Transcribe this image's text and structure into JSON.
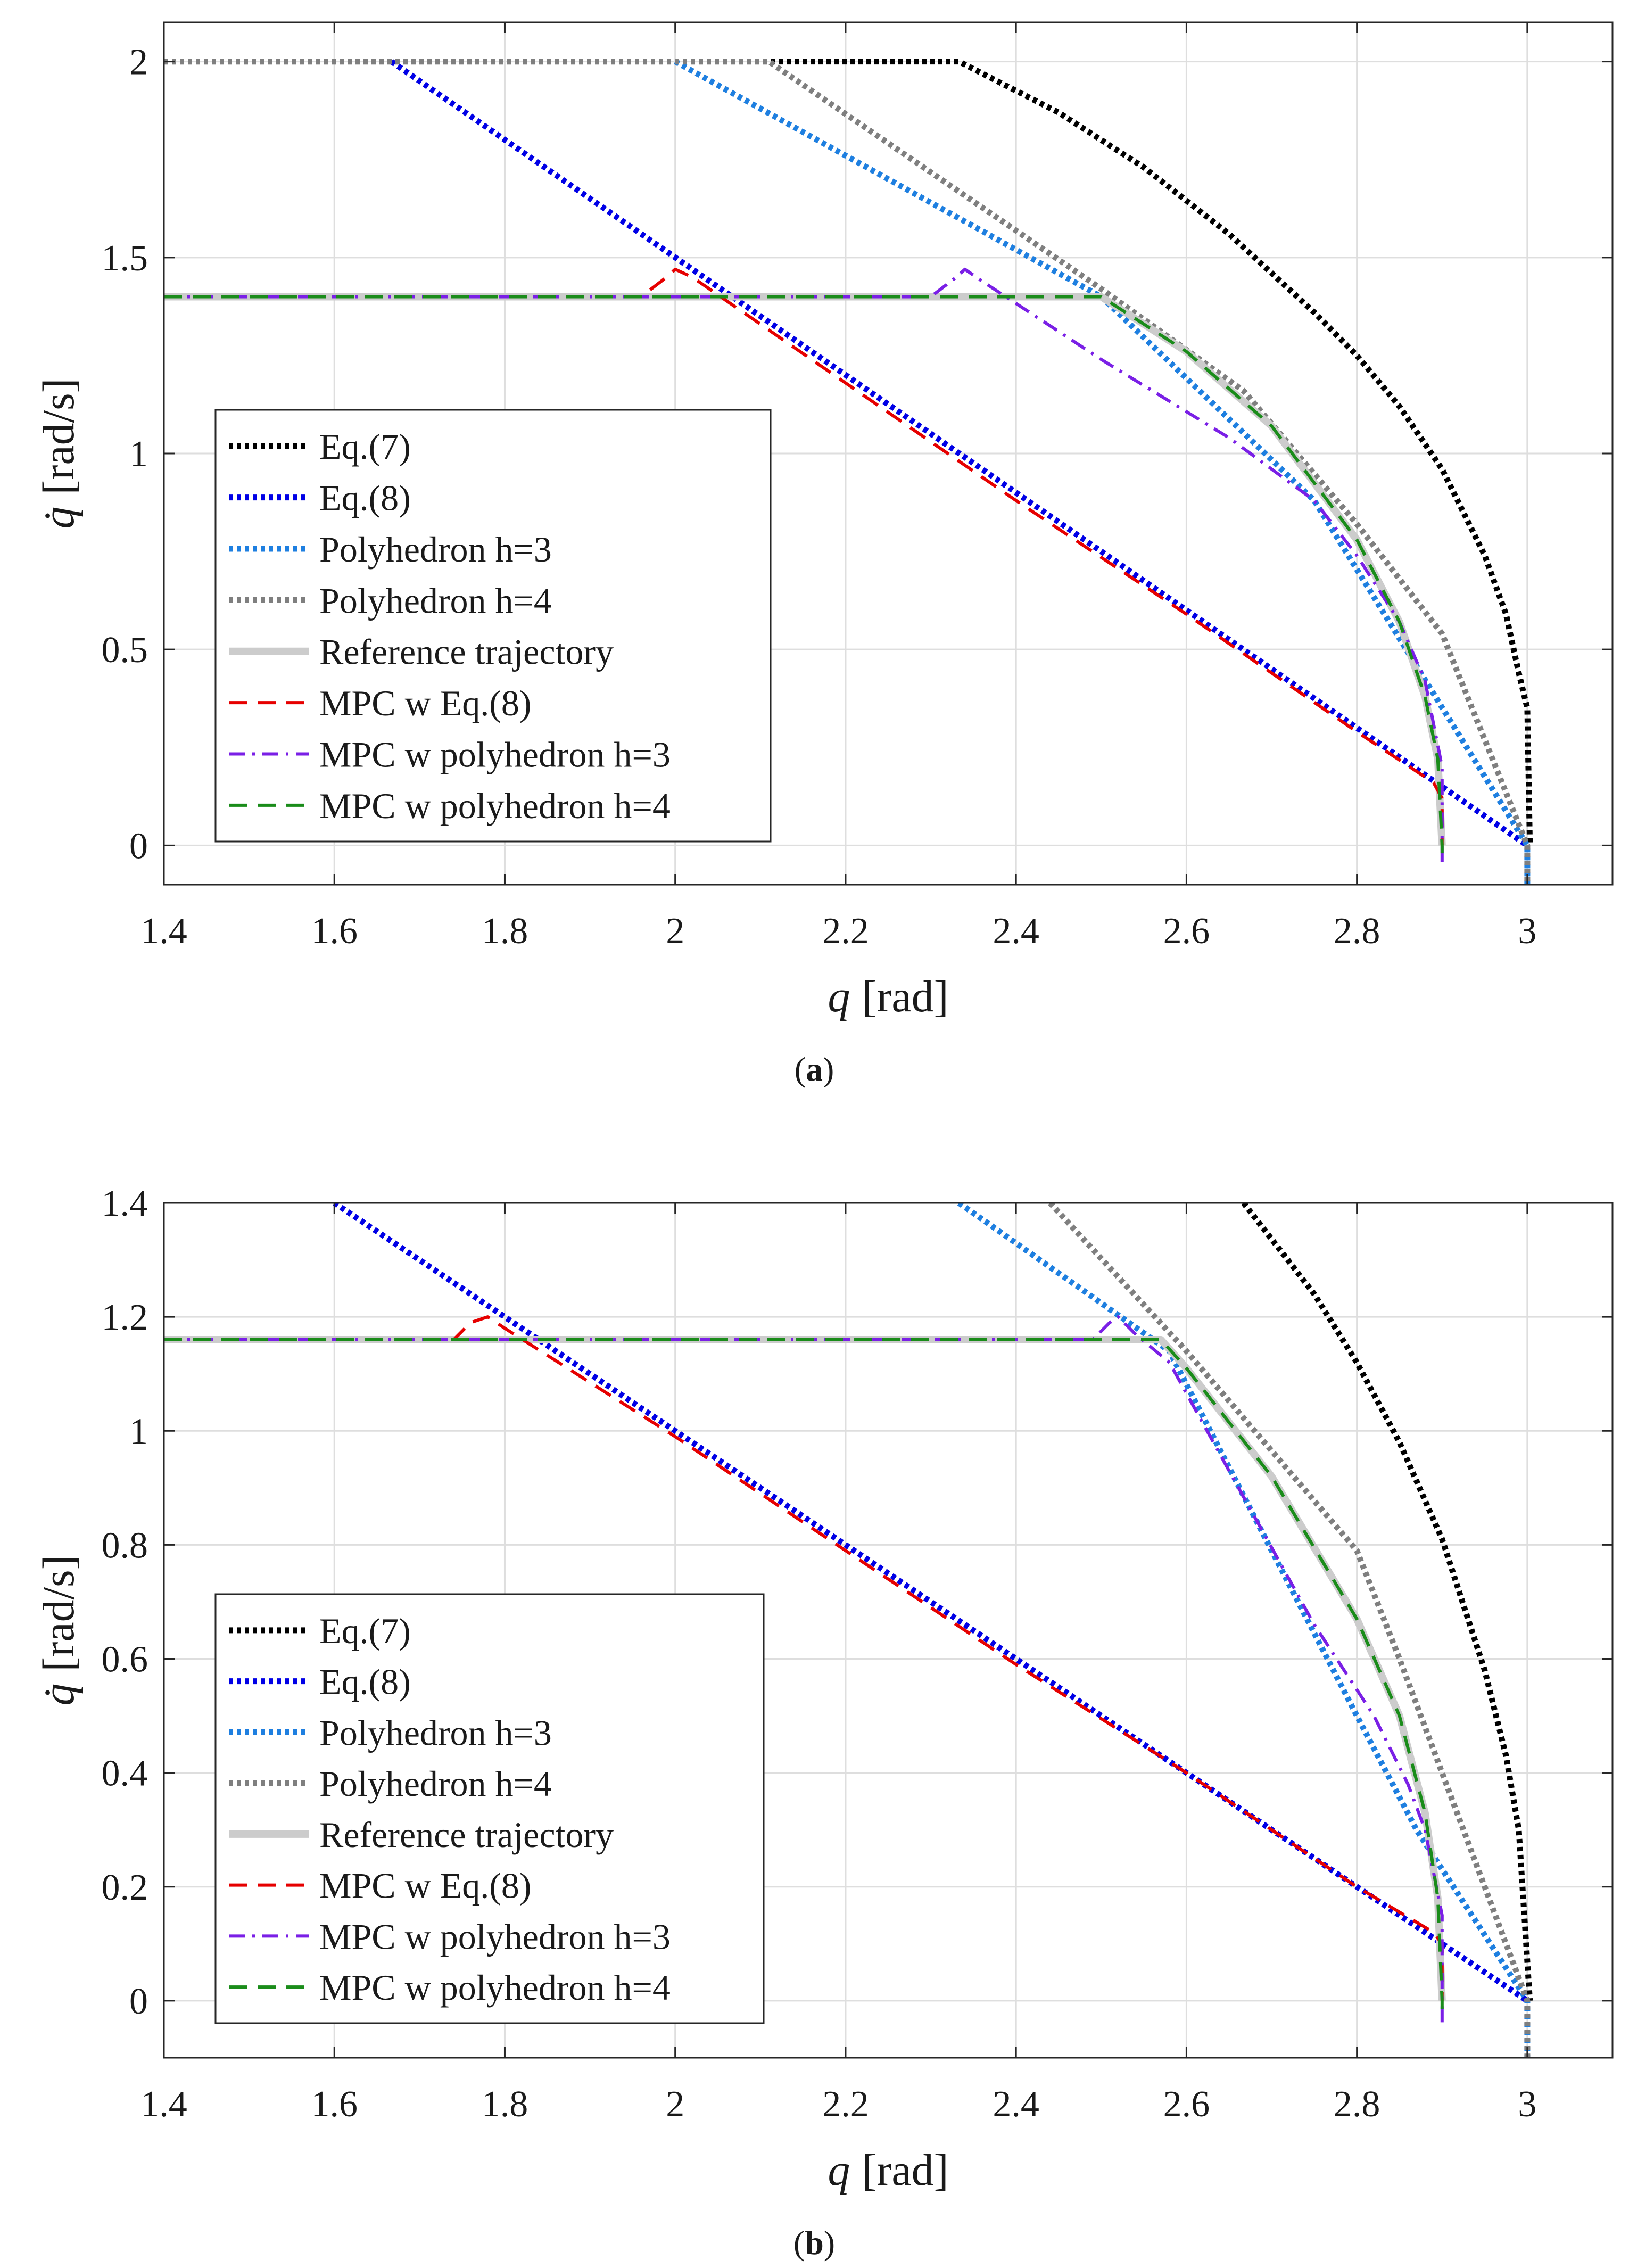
{
  "chart_data": [
    {
      "panel": "a",
      "type": "line",
      "caption_letter": "a",
      "xlabel_var": "q",
      "xlabel_unit": "[rad]",
      "ylabel_var": "q̇",
      "ylabel_unit": "[rad/s]",
      "xlim": [
        1.4,
        3.1
      ],
      "ylim": [
        -0.1,
        2.1
      ],
      "xticks": [
        1.4,
        1.6,
        1.8,
        2,
        2.2,
        2.4,
        2.6,
        2.8,
        3
      ],
      "xtick_labels": [
        "1.4",
        "1.6",
        "1.8",
        "2",
        "2.2",
        "2.4",
        "2.6",
        "2.8",
        "3"
      ],
      "yticks": [
        0,
        0.5,
        1,
        1.5,
        2
      ],
      "ytick_labels": [
        "0",
        "0.5",
        "1",
        "1.5",
        "2"
      ],
      "grid": true,
      "legend_position": "left",
      "series": [
        {
          "name": "Eq.(7)",
          "color": "#000000",
          "style": "dotted",
          "points": [
            [
              1.4,
              2.0
            ],
            [
              2.333,
              2.0
            ],
            [
              2.45,
              1.87
            ],
            [
              2.55,
              1.73
            ],
            [
              2.65,
              1.56
            ],
            [
              2.75,
              1.36
            ],
            [
              2.8,
              1.25
            ],
            [
              2.85,
              1.12
            ],
            [
              2.9,
              0.96
            ],
            [
              2.95,
              0.74
            ],
            [
              2.975,
              0.59
            ],
            [
              2.99,
              0.44
            ],
            [
              3.0,
              0.35
            ],
            [
              3.003,
              0.0
            ]
          ]
        },
        {
          "name": "Eq.(8)",
          "color": "#0000e6",
          "style": "dotted",
          "points": [
            [
              1.667,
              2.0
            ],
            [
              3.0,
              0.0
            ]
          ]
        },
        {
          "name": "Polyhedron h=3",
          "color": "#1e7fe0",
          "style": "dotted",
          "points": [
            [
              2.0,
              2.0
            ],
            [
              2.5,
              1.4
            ],
            [
              2.75,
              0.88
            ],
            [
              2.875,
              0.44
            ],
            [
              3.0,
              0.0
            ],
            [
              3.0,
              -0.1
            ]
          ]
        },
        {
          "name": "Polyhedron h=4",
          "color": "#7f7f7f",
          "style": "dotted",
          "points": [
            [
              1.4,
              2.0
            ],
            [
              2.11,
              2.0
            ],
            [
              2.5,
              1.42
            ],
            [
              2.667,
              1.16
            ],
            [
              2.8,
              0.82
            ],
            [
              2.9,
              0.54
            ],
            [
              3.0,
              0.0
            ],
            [
              3.0,
              -0.1
            ]
          ]
        },
        {
          "name": "Reference trajectory",
          "color": "#cccccc",
          "style": "solid",
          "points": [
            [
              1.4,
              1.4
            ],
            [
              2.5,
              1.4
            ],
            [
              2.6,
              1.26
            ],
            [
              2.7,
              1.07
            ],
            [
              2.8,
              0.78
            ],
            [
              2.85,
              0.57
            ],
            [
              2.88,
              0.38
            ],
            [
              2.895,
              0.22
            ],
            [
              2.9,
              0.0
            ]
          ]
        },
        {
          "name": "MPC w Eq.(8)",
          "color": "#e60000",
          "style": "dashed",
          "points": [
            [
              1.4,
              1.4
            ],
            [
              1.96,
              1.4
            ],
            [
              1.99,
              1.45
            ],
            [
              2.0,
              1.47
            ],
            [
              2.02,
              1.45
            ],
            [
              2.2,
              1.18
            ],
            [
              2.4,
              0.88
            ],
            [
              2.6,
              0.59
            ],
            [
              2.8,
              0.29
            ],
            [
              2.89,
              0.16
            ],
            [
              2.9,
              0.12
            ],
            [
              2.9,
              0.0
            ]
          ]
        },
        {
          "name": "MPC w polyhedron h=3",
          "color": "#7a1fe6",
          "style": "dashdot",
          "points": [
            [
              1.4,
              1.4
            ],
            [
              2.3,
              1.4
            ],
            [
              2.33,
              1.45
            ],
            [
              2.34,
              1.47
            ],
            [
              2.36,
              1.44
            ],
            [
              2.5,
              1.24
            ],
            [
              2.65,
              1.04
            ],
            [
              2.75,
              0.88
            ],
            [
              2.8,
              0.74
            ],
            [
              2.85,
              0.57
            ],
            [
              2.88,
              0.42
            ],
            [
              2.9,
              0.2
            ],
            [
              2.9,
              0.0
            ],
            [
              2.9,
              -0.05
            ]
          ]
        },
        {
          "name": "MPC w polyhedron h=4",
          "color": "#1a8c1a",
          "style": "dashed",
          "points": [
            [
              1.4,
              1.4
            ],
            [
              2.5,
              1.4
            ],
            [
              2.6,
              1.26
            ],
            [
              2.7,
              1.07
            ],
            [
              2.8,
              0.78
            ],
            [
              2.85,
              0.57
            ],
            [
              2.88,
              0.38
            ],
            [
              2.895,
              0.22
            ],
            [
              2.9,
              0.0
            ],
            [
              2.9,
              -0.02
            ]
          ]
        }
      ]
    },
    {
      "panel": "b",
      "type": "line",
      "caption_letter": "b",
      "xlabel_var": "q",
      "xlabel_unit": "[rad]",
      "ylabel_var": "q̇",
      "ylabel_unit": "[rad/s]",
      "xlim": [
        1.4,
        3.1
      ],
      "ylim": [
        -0.1,
        1.4
      ],
      "xticks": [
        1.4,
        1.6,
        1.8,
        2,
        2.2,
        2.4,
        2.6,
        2.8,
        3
      ],
      "xtick_labels": [
        "1.4",
        "1.6",
        "1.8",
        "2",
        "2.2",
        "2.4",
        "2.6",
        "2.8",
        "3"
      ],
      "yticks": [
        0,
        0.2,
        0.4,
        0.6,
        0.8,
        1,
        1.2,
        1.4
      ],
      "ytick_labels": [
        "0",
        "0.2",
        "0.4",
        "0.6",
        "0.8",
        "1",
        "1.2",
        "1.4"
      ],
      "grid": true,
      "legend_position": "bottom-left",
      "series": [
        {
          "name": "Eq.(7)",
          "color": "#000000",
          "style": "dotted",
          "points": [
            [
              2.667,
              1.4
            ],
            [
              2.75,
              1.24
            ],
            [
              2.8,
              1.12
            ],
            [
              2.85,
              0.98
            ],
            [
              2.9,
              0.81
            ],
            [
              2.95,
              0.58
            ],
            [
              2.975,
              0.43
            ],
            [
              2.99,
              0.3
            ],
            [
              3.003,
              0.0
            ]
          ]
        },
        {
          "name": "Eq.(8)",
          "color": "#0000e6",
          "style": "dotted",
          "points": [
            [
              1.6,
              1.4
            ],
            [
              3.0,
              0.0
            ]
          ]
        },
        {
          "name": "Polyhedron h=3",
          "color": "#1e7fe0",
          "style": "dotted",
          "points": [
            [
              2.333,
              1.4
            ],
            [
              2.58,
              1.14
            ],
            [
              2.7,
              0.79
            ],
            [
              2.8,
              0.5
            ],
            [
              2.87,
              0.3
            ],
            [
              3.0,
              0.0
            ],
            [
              3.0,
              -0.1
            ]
          ]
        },
        {
          "name": "Polyhedron h=4",
          "color": "#7f7f7f",
          "style": "dotted",
          "points": [
            [
              2.44,
              1.4
            ],
            [
              2.6,
              1.14
            ],
            [
              2.8,
              0.79
            ],
            [
              2.85,
              0.6
            ],
            [
              2.9,
              0.4
            ],
            [
              3.0,
              0.0
            ],
            [
              3.0,
              -0.1
            ]
          ]
        },
        {
          "name": "Reference trajectory",
          "color": "#cccccc",
          "style": "solid",
          "points": [
            [
              1.4,
              1.16
            ],
            [
              2.57,
              1.16
            ],
            [
              2.6,
              1.11
            ],
            [
              2.7,
              0.92
            ],
            [
              2.8,
              0.67
            ],
            [
              2.85,
              0.5
            ],
            [
              2.88,
              0.33
            ],
            [
              2.895,
              0.18
            ],
            [
              2.9,
              0.0
            ]
          ]
        },
        {
          "name": "MPC w Eq.(8)",
          "color": "#e60000",
          "style": "dashed",
          "points": [
            [
              1.4,
              1.16
            ],
            [
              1.74,
              1.16
            ],
            [
              1.76,
              1.19
            ],
            [
              1.78,
              1.2
            ],
            [
              1.8,
              1.18
            ],
            [
              2.0,
              0.99
            ],
            [
              2.2,
              0.79
            ],
            [
              2.4,
              0.59
            ],
            [
              2.6,
              0.4
            ],
            [
              2.8,
              0.2
            ],
            [
              2.89,
              0.12
            ],
            [
              2.9,
              0.1
            ],
            [
              2.9,
              0.0
            ]
          ]
        },
        {
          "name": "MPC w polyhedron h=3",
          "color": "#7a1fe6",
          "style": "dashdot",
          "points": [
            [
              1.4,
              1.16
            ],
            [
              2.49,
              1.16
            ],
            [
              2.51,
              1.19
            ],
            [
              2.52,
              1.2
            ],
            [
              2.54,
              1.17
            ],
            [
              2.58,
              1.12
            ],
            [
              2.65,
              0.93
            ],
            [
              2.75,
              0.66
            ],
            [
              2.82,
              0.5
            ],
            [
              2.86,
              0.38
            ],
            [
              2.88,
              0.3
            ],
            [
              2.9,
              0.15
            ],
            [
              2.9,
              0.0
            ],
            [
              2.9,
              -0.05
            ]
          ]
        },
        {
          "name": "MPC w polyhedron h=4",
          "color": "#1a8c1a",
          "style": "dashed",
          "points": [
            [
              1.4,
              1.16
            ],
            [
              2.57,
              1.16
            ],
            [
              2.6,
              1.11
            ],
            [
              2.7,
              0.92
            ],
            [
              2.8,
              0.67
            ],
            [
              2.85,
              0.5
            ],
            [
              2.88,
              0.33
            ],
            [
              2.895,
              0.18
            ],
            [
              2.9,
              0.0
            ],
            [
              2.9,
              -0.02
            ]
          ]
        }
      ]
    }
  ]
}
